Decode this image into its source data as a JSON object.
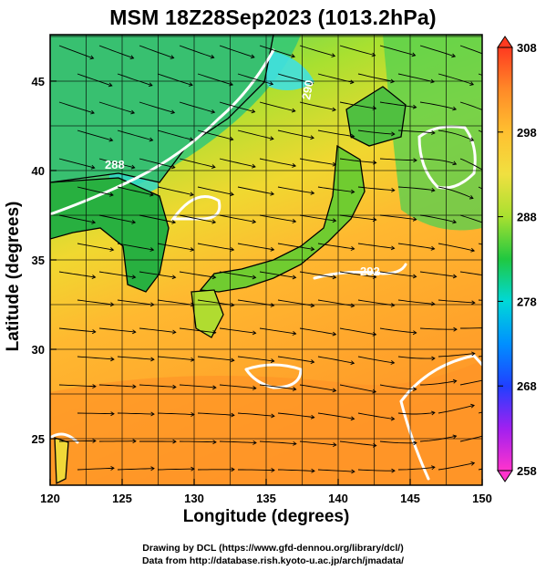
{
  "title": "MSM 18Z28Sep2023 (1013.2hPa)",
  "xaxis": {
    "label": "Longitude (degrees)",
    "range": [
      120,
      150
    ],
    "ticks": [
      "120",
      "125",
      "130",
      "135",
      "140",
      "145",
      "150"
    ]
  },
  "yaxis": {
    "label": "Latitude  (degrees)",
    "range": [
      22.4,
      47.6
    ],
    "ticks": [
      "25",
      "30",
      "35",
      "40",
      "45"
    ]
  },
  "colorbar": {
    "range": [
      258,
      308
    ],
    "ticks": [
      "258",
      "268",
      "278",
      "288",
      "298",
      "308"
    ],
    "colors": [
      "#ff33cc",
      "#8000ff",
      "#0050ff",
      "#00c8ff",
      "#00e080",
      "#20c040",
      "#c8e630",
      "#ffcc33",
      "#ff9933",
      "#ff4422"
    ]
  },
  "contour_labels": [
    "288",
    "290",
    "292"
  ],
  "credits": {
    "line1": "Drawing by DCL (https://www.gfd-dennou.org/library/dcl/)",
    "line2": "Data from http://database.rish.kyoto-u.ac.jp/arch/jmadata/"
  }
}
